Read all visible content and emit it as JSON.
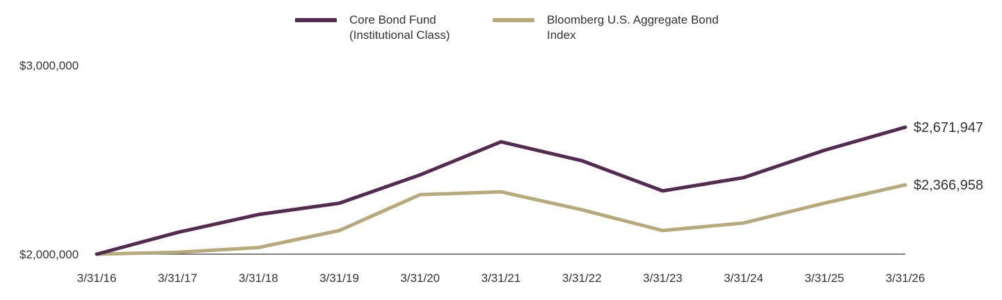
{
  "legend": [
    {
      "label": "Core Bond Fund\n(Institutional Class)",
      "color": "#542a50"
    },
    {
      "label": "Bloomberg U.S. Aggregate Bond\nIndex",
      "color": "#b8a97b"
    }
  ],
  "chart_data": {
    "type": "line",
    "x": [
      "3/31/16",
      "3/31/17",
      "3/31/18",
      "3/31/19",
      "3/31/20",
      "3/31/21",
      "3/31/22",
      "3/31/23",
      "3/31/24",
      "3/31/25",
      "3/31/26"
    ],
    "y_ticks": [
      "$2,000,000",
      "$3,000,000"
    ],
    "ylim": [
      2000000,
      3000000
    ],
    "series": [
      {
        "name": "Core Bond Fund (Institutional Class)",
        "color": "#542a50",
        "values": [
          2000000,
          2115000,
          2210000,
          2270000,
          2420000,
          2595000,
          2495000,
          2335000,
          2405000,
          2550000,
          2671947
        ],
        "end_label": "$2,671,947"
      },
      {
        "name": "Bloomberg U.S. Aggregate Bond Index",
        "color": "#b8a97b",
        "values": [
          2000000,
          2010000,
          2035000,
          2125000,
          2315000,
          2330000,
          2235000,
          2125000,
          2165000,
          2270000,
          2366958
        ],
        "end_label": "$2,366,958"
      }
    ],
    "grid": false,
    "legend_position": "top-center"
  }
}
